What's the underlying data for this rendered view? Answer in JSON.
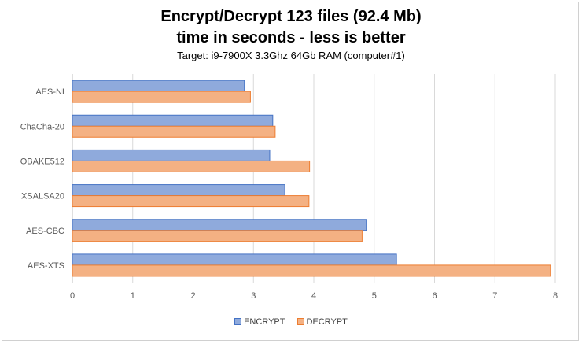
{
  "chart_data": {
    "type": "bar",
    "orientation": "horizontal",
    "title": "Encrypt/Decrypt 123 files (92.4 Mb)",
    "subtitle": "time in seconds - less is better",
    "note": "Target: i9-7900X 3.3Ghz 64Gb RAM  (computer#1)",
    "categories": [
      "AES-NI",
      "ChaCha-20",
      "OBAKE512",
      "XSALSA20",
      "AES-CBC",
      "AES-XTS"
    ],
    "series": [
      {
        "name": "ENCRYPT",
        "color": "#8faadc",
        "stroke": "#4472c4",
        "values": [
          2.85,
          3.32,
          3.27,
          3.52,
          4.87,
          5.37
        ]
      },
      {
        "name": "DECRYPT",
        "color": "#f4b183",
        "stroke": "#ed7d31",
        "values": [
          2.95,
          3.36,
          3.93,
          3.92,
          4.8,
          7.92
        ]
      }
    ],
    "xlim": [
      0,
      8
    ],
    "xticks": [
      "0",
      "1",
      "2",
      "3",
      "4",
      "5",
      "6",
      "7",
      "8"
    ],
    "grid": true,
    "legend_position": "bottom"
  }
}
